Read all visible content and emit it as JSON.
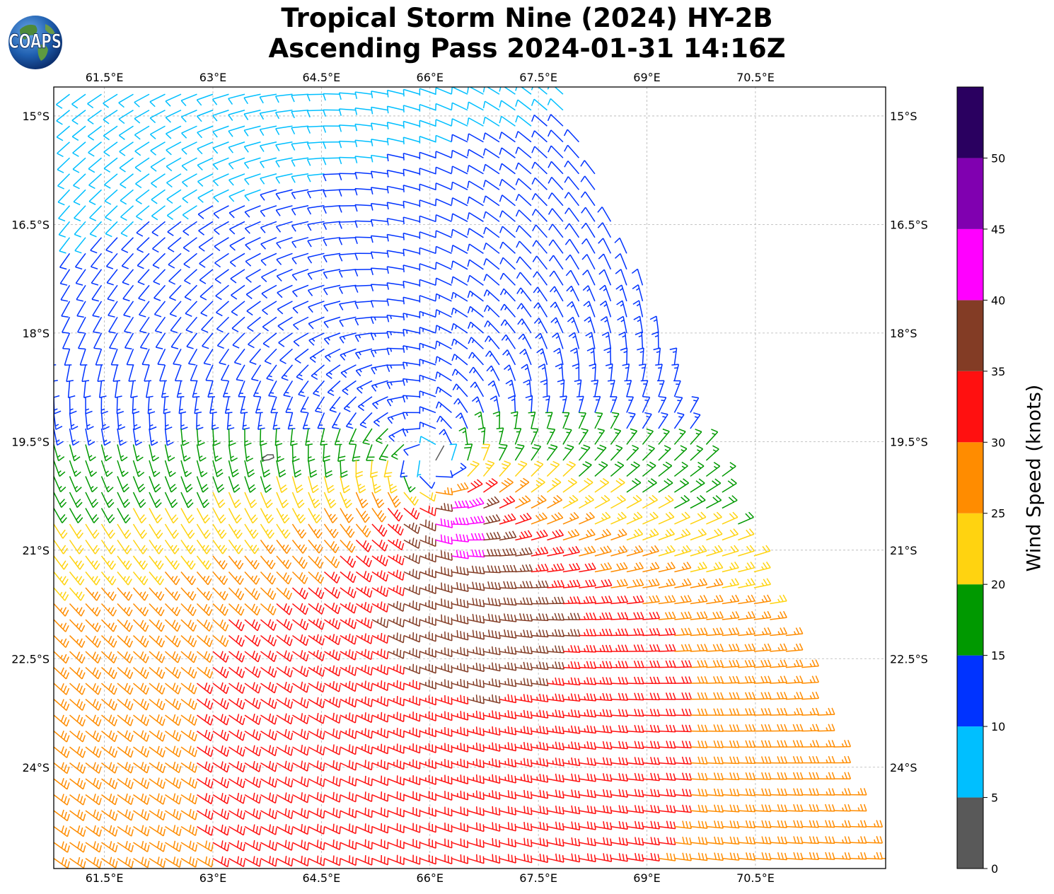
{
  "title_line1": "Tropical Storm Nine (2024) HY-2B",
  "title_line2": "Ascending Pass 2024-01-31 14:16Z",
  "logo_text": "COAPS",
  "map": {
    "lon_range": [
      60.8,
      72.3
    ],
    "lat_range": [
      -25.4,
      -14.6
    ],
    "lon_ticks": [
      61.5,
      63,
      64.5,
      66,
      67.5,
      69,
      70.5
    ],
    "lon_tick_labels": [
      "61.5°E",
      "63°E",
      "64.5°E",
      "66°E",
      "67.5°E",
      "69°E",
      "70.5°E"
    ],
    "lat_ticks": [
      -15,
      -16.5,
      -18,
      -19.5,
      -21,
      -22.5,
      -24
    ],
    "lat_tick_labels": [
      "15°S",
      "16.5°S",
      "18°S",
      "19.5°S",
      "21°S",
      "22.5°S",
      "24°S"
    ],
    "grid": true,
    "storm_center": {
      "lon": 66.0,
      "lat": -20.0
    },
    "swath_corners": [
      [
        60.8,
        -14.6
      ],
      [
        67.8,
        -14.6
      ],
      [
        72.3,
        -25.4
      ],
      [
        60.8,
        -25.4
      ]
    ]
  },
  "colorbar": {
    "label": "Wind Speed (knots)",
    "ticks": [
      0,
      5,
      10,
      15,
      20,
      25,
      30,
      35,
      40,
      45,
      50
    ],
    "bins": [
      {
        "min": 0,
        "max": 5,
        "color": "#595959"
      },
      {
        "min": 5,
        "max": 10,
        "color": "#00bfff"
      },
      {
        "min": 10,
        "max": 15,
        "color": "#0033ff"
      },
      {
        "min": 15,
        "max": 20,
        "color": "#009900"
      },
      {
        "min": 20,
        "max": 25,
        "color": "#ffd310"
      },
      {
        "min": 25,
        "max": 30,
        "color": "#ff8c00"
      },
      {
        "min": 30,
        "max": 35,
        "color": "#ff1010"
      },
      {
        "min": 35,
        "max": 40,
        "color": "#833c25"
      },
      {
        "min": 40,
        "max": 45,
        "color": "#ff00ff"
      },
      {
        "min": 45,
        "max": 50,
        "color": "#8000b0"
      },
      {
        "min": 50,
        "max": 55,
        "color": "#2a0060"
      }
    ]
  }
}
